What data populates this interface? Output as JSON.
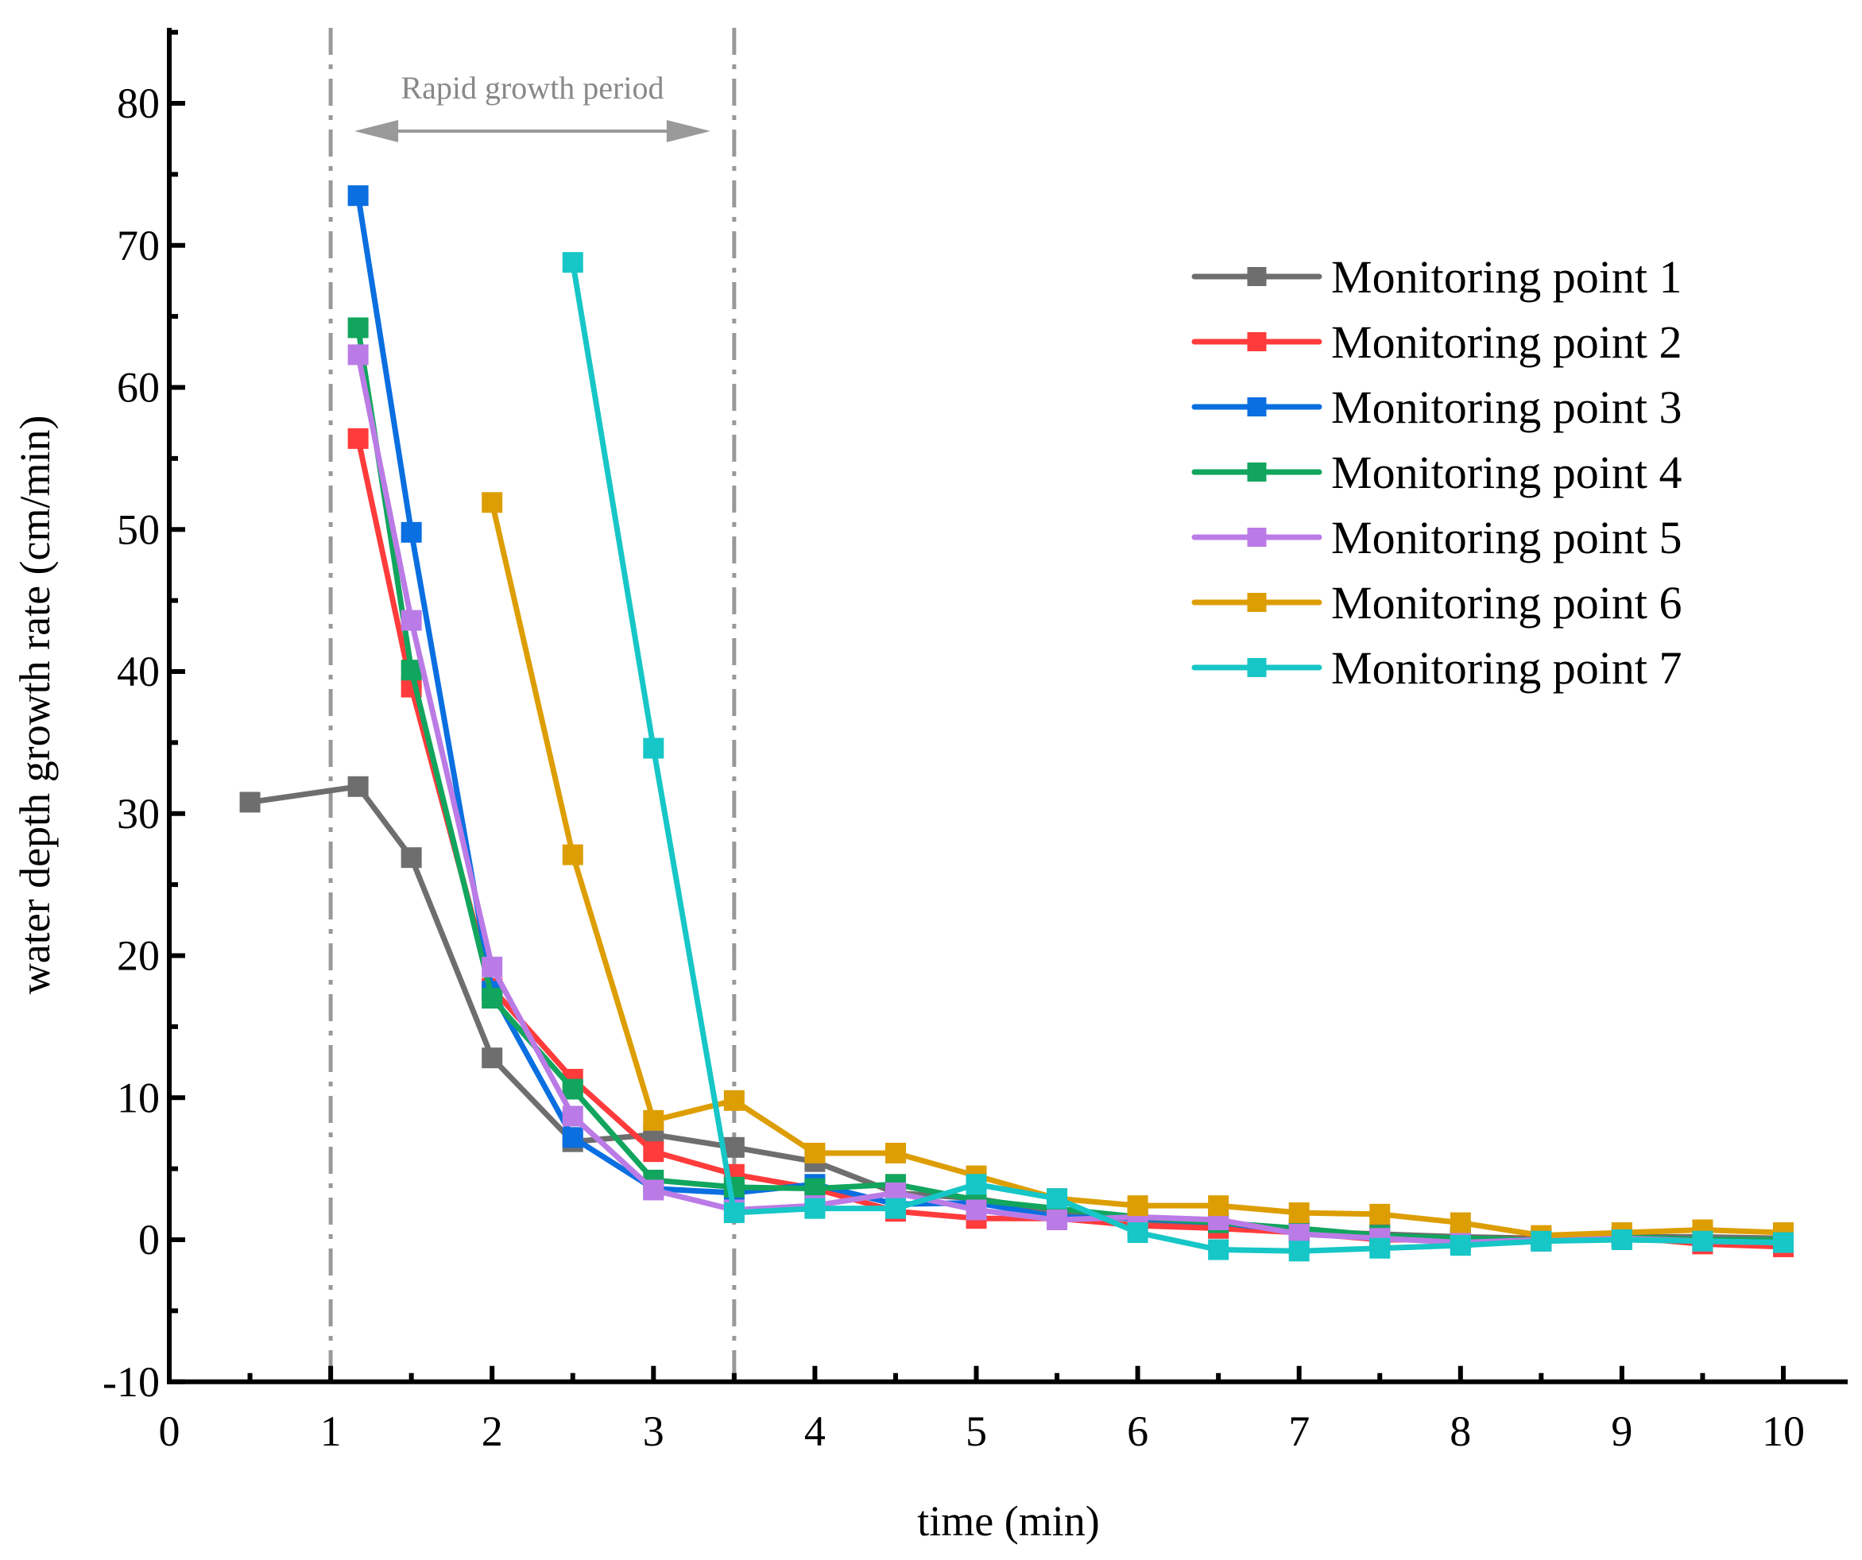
{
  "chart_data": {
    "type": "line",
    "title": "",
    "xlabel": "time (min)",
    "ylabel": "water depth growth rate (cm/min)",
    "xlim": [
      0,
      10.4
    ],
    "ylim": [
      -10,
      85
    ],
    "xticks": [
      0,
      1,
      2,
      3,
      4,
      5,
      6,
      7,
      8,
      9,
      10
    ],
    "yticks": [
      -10,
      0,
      10,
      20,
      30,
      40,
      50,
      60,
      70,
      80
    ],
    "x_tick_labels": [
      "0",
      "1",
      "2",
      "3",
      "4",
      "5",
      "6",
      "7",
      "8",
      "9",
      "10"
    ],
    "y_tick_labels": [
      "-10",
      "0",
      "10",
      "20",
      "30",
      "40",
      "50",
      "60",
      "70",
      "80"
    ],
    "legend_position": "top-right",
    "annotation": {
      "text": "Rapid growth period",
      "x_start": 1.0,
      "x_end": 3.5,
      "color": "#999999"
    },
    "series": [
      {
        "name": "Monitoring point 1",
        "color": "#6e6e6e",
        "points": [
          [
            0.5,
            30.8
          ],
          [
            1.17,
            31.9
          ],
          [
            1.5,
            26.9
          ],
          [
            2,
            12.8
          ],
          [
            2.5,
            6.9
          ],
          [
            3,
            7.4
          ],
          [
            3.5,
            6.5
          ],
          [
            4,
            5.5
          ],
          [
            4.5,
            3.3
          ],
          [
            5,
            2.9
          ],
          [
            5.5,
            2.0
          ],
          [
            6,
            1.4
          ],
          [
            6.5,
            0.8
          ],
          [
            7,
            0.6
          ],
          [
            7.5,
            0.4
          ],
          [
            8,
            0.2
          ],
          [
            8.5,
            0.1
          ],
          [
            9,
            0.2
          ],
          [
            9.5,
            0.2
          ],
          [
            10,
            0.1
          ]
        ]
      },
      {
        "name": "Monitoring point 2",
        "color": "#ff3b3b",
        "points": [
          [
            1.17,
            56.4
          ],
          [
            1.5,
            38.9
          ],
          [
            2,
            17.7
          ],
          [
            2.5,
            11.3
          ],
          [
            3,
            6.2
          ],
          [
            3.5,
            4.6
          ],
          [
            4,
            3.6
          ],
          [
            4.5,
            2.0
          ],
          [
            5,
            1.5
          ],
          [
            5.5,
            1.5
          ],
          [
            6,
            1.0
          ],
          [
            6.5,
            0.8
          ],
          [
            7,
            0.5
          ],
          [
            7.5,
            0.0
          ],
          [
            8,
            0.0
          ],
          [
            8.5,
            0.1
          ],
          [
            9,
            0.2
          ],
          [
            9.5,
            -0.3
          ],
          [
            10,
            -0.5
          ]
        ]
      },
      {
        "name": "Monitoring point 3",
        "color": "#0a6fe0",
        "points": [
          [
            1.17,
            73.5
          ],
          [
            1.5,
            49.8
          ],
          [
            2,
            17.5
          ],
          [
            2.5,
            7.2
          ],
          [
            3,
            3.6
          ],
          [
            3.5,
            3.3
          ],
          [
            4,
            3.9
          ],
          [
            4.5,
            2.5
          ],
          [
            5,
            2.6
          ],
          [
            5.5,
            1.6
          ],
          [
            6,
            1.5
          ],
          [
            6.5,
            1.2
          ],
          [
            7,
            0.6
          ],
          [
            7.5,
            0.2
          ],
          [
            8,
            0.0
          ],
          [
            8.5,
            -0.1
          ],
          [
            9,
            0.1
          ],
          [
            9.5,
            0.0
          ],
          [
            10,
            -0.1
          ]
        ]
      },
      {
        "name": "Monitoring point 4",
        "color": "#11a55e",
        "points": [
          [
            1.17,
            64.2
          ],
          [
            1.5,
            40.1
          ],
          [
            2,
            17.0
          ],
          [
            2.5,
            10.6
          ],
          [
            3,
            4.2
          ],
          [
            3.5,
            3.7
          ],
          [
            4,
            3.6
          ],
          [
            4.5,
            3.9
          ],
          [
            5,
            2.8
          ],
          [
            5.5,
            2.2
          ],
          [
            6,
            1.6
          ],
          [
            6.5,
            1.2
          ],
          [
            7,
            0.8
          ],
          [
            7.5,
            0.3
          ],
          [
            8,
            0.1
          ],
          [
            8.5,
            0.0
          ],
          [
            9,
            0.2
          ],
          [
            9.5,
            0.0
          ],
          [
            10,
            0.0
          ]
        ]
      },
      {
        "name": "Monitoring point 5",
        "color": "#bb7be6",
        "points": [
          [
            1.17,
            62.3
          ],
          [
            1.5,
            43.6
          ],
          [
            2,
            19.2
          ],
          [
            2.5,
            8.7
          ],
          [
            3,
            3.5
          ],
          [
            3.5,
            2.1
          ],
          [
            4,
            2.4
          ],
          [
            4.5,
            3.3
          ],
          [
            5,
            2.1
          ],
          [
            5.5,
            1.4
          ],
          [
            6,
            1.6
          ],
          [
            6.5,
            1.4
          ],
          [
            7,
            0.4
          ],
          [
            7.5,
            0.1
          ],
          [
            8,
            -0.2
          ],
          [
            8.5,
            0.0
          ],
          [
            9,
            0.1
          ],
          [
            9.5,
            -0.1
          ],
          [
            10,
            -0.2
          ]
        ]
      },
      {
        "name": "Monitoring point 6",
        "color": "#dd9e04",
        "points": [
          [
            2,
            51.9
          ],
          [
            2.5,
            27.1
          ],
          [
            3,
            8.4
          ],
          [
            3.5,
            9.8
          ],
          [
            4,
            6.1
          ],
          [
            4.5,
            6.1
          ],
          [
            5,
            4.5
          ],
          [
            5.5,
            2.9
          ],
          [
            6,
            2.4
          ],
          [
            6.5,
            2.4
          ],
          [
            7,
            1.9
          ],
          [
            7.5,
            1.8
          ],
          [
            8,
            1.2
          ],
          [
            8.5,
            0.3
          ],
          [
            9,
            0.5
          ],
          [
            9.5,
            0.7
          ],
          [
            10,
            0.5
          ]
        ]
      },
      {
        "name": "Monitoring point 7",
        "color": "#17c6c6",
        "points": [
          [
            2.5,
            68.8
          ],
          [
            3,
            34.6
          ],
          [
            3.5,
            1.9
          ],
          [
            4,
            2.2
          ],
          [
            4.5,
            2.2
          ],
          [
            5,
            3.9
          ],
          [
            5.5,
            2.9
          ],
          [
            6,
            0.5
          ],
          [
            6.5,
            -0.7
          ],
          [
            7,
            -0.8
          ],
          [
            7.5,
            -0.6
          ],
          [
            8,
            -0.4
          ],
          [
            8.5,
            -0.1
          ],
          [
            9,
            0.0
          ],
          [
            9.5,
            -0.1
          ],
          [
            10,
            -0.2
          ]
        ]
      }
    ]
  }
}
